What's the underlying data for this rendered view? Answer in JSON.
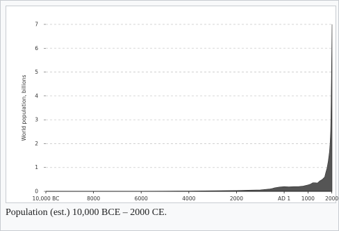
{
  "caption": "Population (est.) 10,000 BCE – 2000 CE.",
  "chart_data": {
    "type": "area",
    "title": "",
    "ylabel": "World population, billions",
    "xlabel": "",
    "ylim": [
      0,
      7
    ],
    "xlim": [
      -10000,
      2010
    ],
    "grid": "horizontal dashed",
    "fill_color": "#555555",
    "y_ticks": [
      {
        "value": 0,
        "label": "0"
      },
      {
        "value": 1,
        "label": "1"
      },
      {
        "value": 2,
        "label": "2"
      },
      {
        "value": 3,
        "label": "3"
      },
      {
        "value": 4,
        "label": "4"
      },
      {
        "value": 5,
        "label": "5"
      },
      {
        "value": 6,
        "label": "6"
      },
      {
        "value": 7,
        "label": "7"
      }
    ],
    "x_ticks": [
      {
        "value": -10000,
        "label": "10,000 BC"
      },
      {
        "value": -8000,
        "label": "8000"
      },
      {
        "value": -6000,
        "label": "6000"
      },
      {
        "value": -4000,
        "label": "4000"
      },
      {
        "value": -2000,
        "label": "2000"
      },
      {
        "value": 1,
        "label": "AD 1"
      },
      {
        "value": 1000,
        "label": "1000"
      },
      {
        "value": 2000,
        "label": "2000"
      }
    ],
    "x": [
      -10000,
      -8000,
      -6000,
      -5000,
      -4000,
      -3000,
      -2000,
      -1500,
      -1000,
      -600,
      -500,
      -400,
      -200,
      1,
      200,
      400,
      600,
      800,
      1000,
      1100,
      1200,
      1300,
      1400,
      1500,
      1600,
      1700,
      1750,
      1800,
      1850,
      1900,
      1927,
      1950,
      1960,
      1974,
      1987,
      1999,
      2010
    ],
    "values": [
      0.002,
      0.005,
      0.007,
      0.01,
      0.015,
      0.025,
      0.035,
      0.05,
      0.06,
      0.1,
      0.12,
      0.15,
      0.18,
      0.2,
      0.19,
      0.2,
      0.2,
      0.22,
      0.27,
      0.3,
      0.36,
      0.36,
      0.35,
      0.44,
      0.5,
      0.6,
      0.8,
      0.98,
      1.26,
      1.65,
      2.0,
      2.5,
      3.0,
      4.0,
      5.0,
      6.0,
      7.0
    ]
  }
}
